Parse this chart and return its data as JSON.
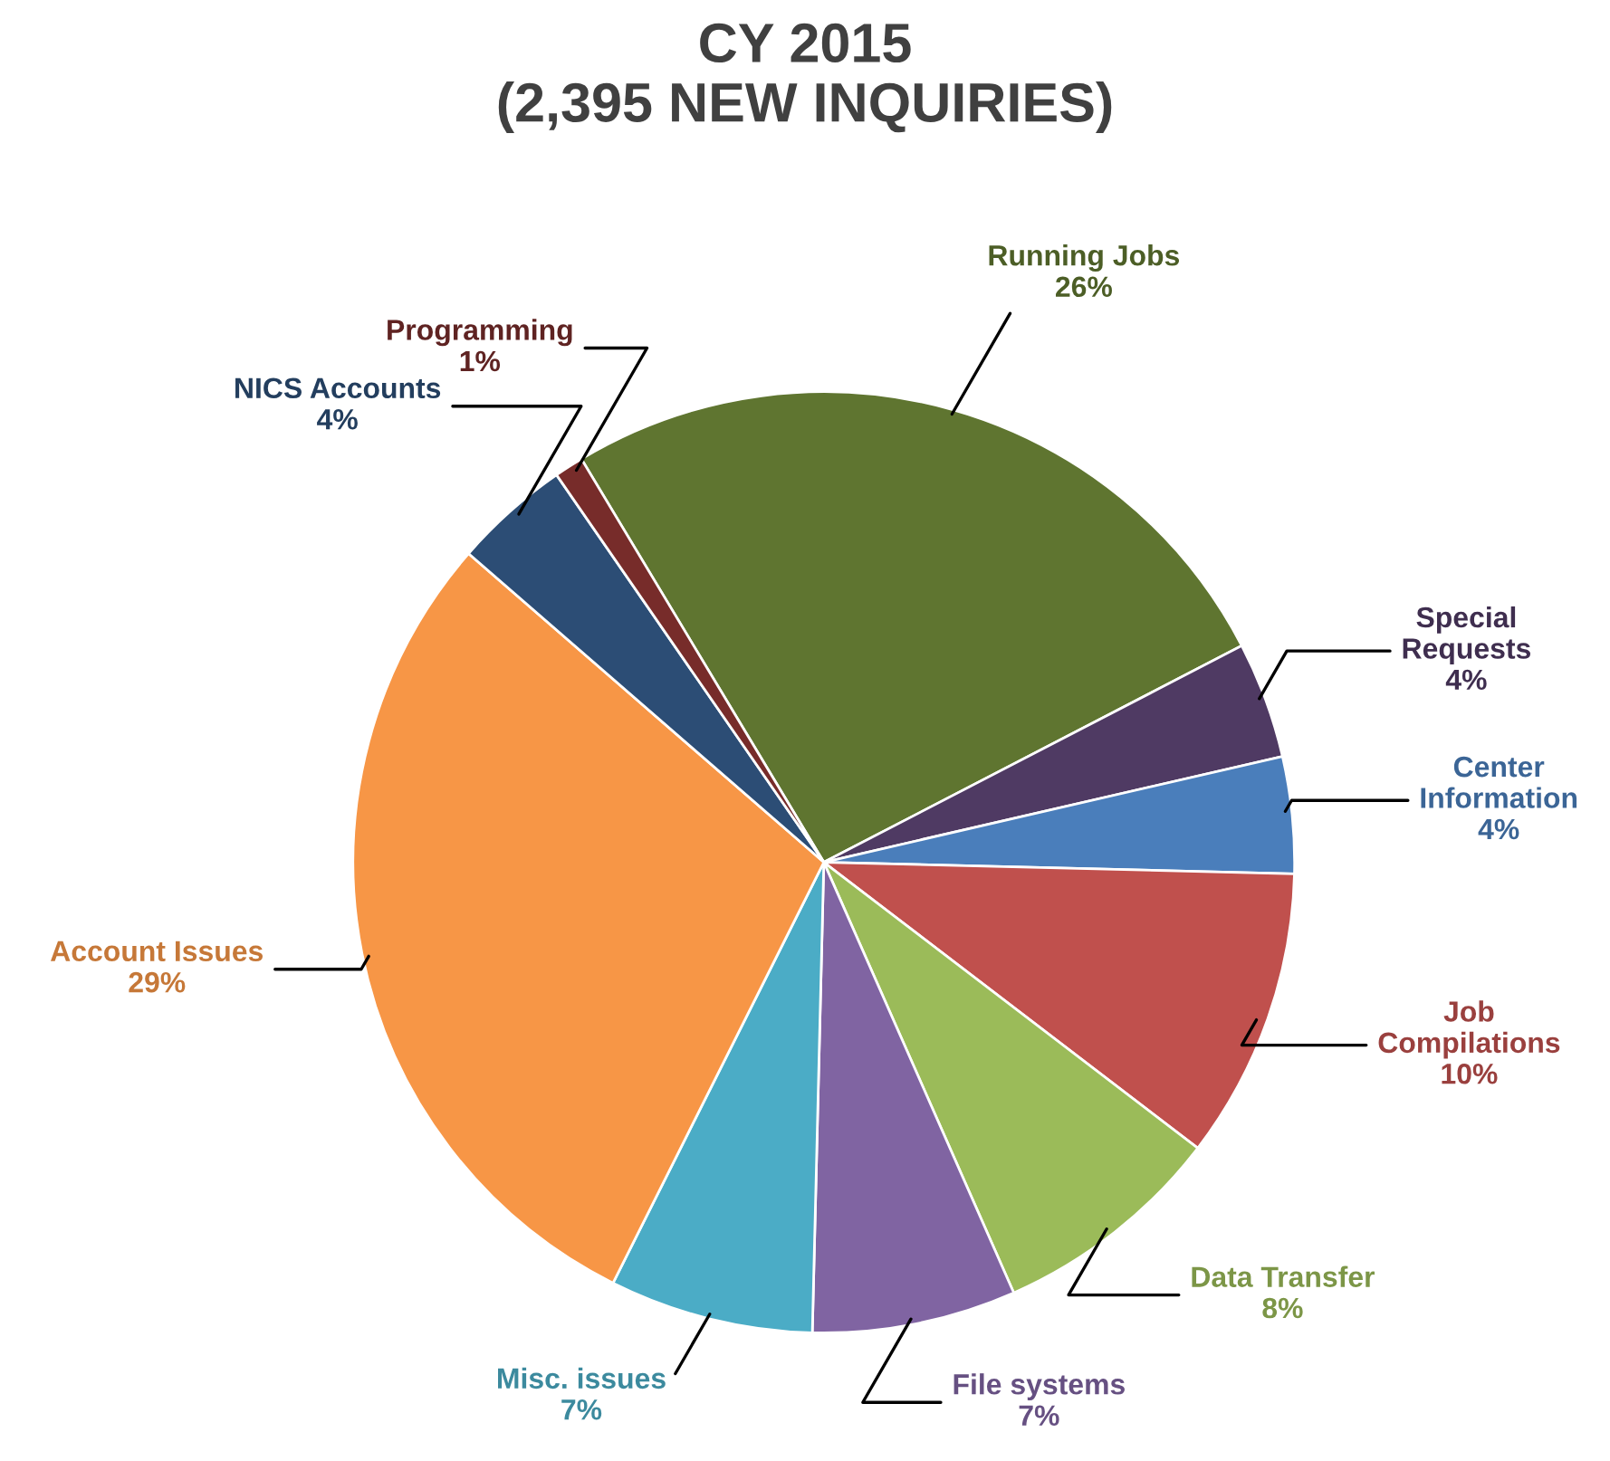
{
  "chart_data": {
    "type": "pie",
    "title": "CY 2015\n(2,395 NEW INQUIRIES)",
    "categories": [
      "Running Jobs",
      "Special\nRequests",
      "Center\nInformation",
      "Job\nCompilations",
      "Data Transfer",
      "File systems",
      "Misc. issues",
      "Account Issues",
      "NICS Accounts",
      "Programming"
    ],
    "values": [
      26,
      4,
      4,
      10,
      8,
      7,
      7,
      29,
      4,
      1
    ],
    "value_labels": [
      "26%",
      "4%",
      "4%",
      "10%",
      "8%",
      "7%",
      "7%",
      "29%",
      "4%",
      "1%"
    ],
    "colors": [
      "#5f7530",
      "#4f3a63",
      "#4a7ebb",
      "#c0504d",
      "#9bbb59",
      "#8064a2",
      "#4bacc6",
      "#f79646",
      "#2c4d75",
      "#772c2a"
    ],
    "legend": false
  }
}
